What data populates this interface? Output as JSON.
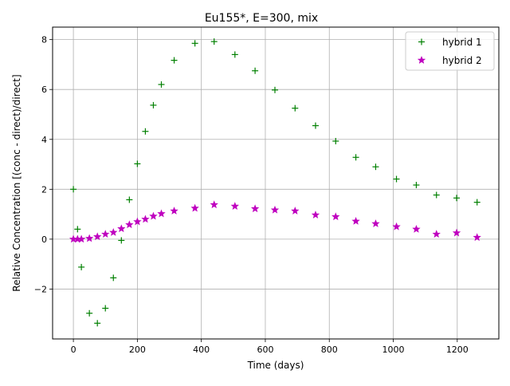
{
  "chart_data": {
    "type": "scatter",
    "title": "Eu155*, E=300, mix",
    "xlabel": "Time (days)",
    "ylabel": "Relative Concentration [(conc - direct)/direct]",
    "xlim": [
      -65,
      1330
    ],
    "ylim": [
      -4.0,
      8.5
    ],
    "xticks": [
      0,
      200,
      400,
      600,
      800,
      1000,
      1200
    ],
    "yticks": [
      -2,
      0,
      2,
      4,
      6,
      8
    ],
    "xtick_labels": [
      "0",
      "200",
      "400",
      "600",
      "800",
      "1000",
      "1200"
    ],
    "ytick_labels": [
      "−2",
      "0",
      "2",
      "4",
      "6",
      "8"
    ],
    "grid": true,
    "legend_position": "top-right",
    "series": [
      {
        "name": "hybrid 1",
        "marker": "plus",
        "color": "#008000",
        "x": [
          0,
          13,
          25,
          50,
          75,
          100,
          125,
          150,
          175,
          200,
          225,
          250,
          275,
          315,
          380,
          440,
          505,
          568,
          630,
          693,
          757,
          820,
          883,
          945,
          1010,
          1072,
          1135,
          1198,
          1262
        ],
        "y": [
          2.0,
          0.4,
          -1.12,
          -2.97,
          -3.37,
          -2.77,
          -1.55,
          -0.05,
          1.58,
          3.02,
          4.32,
          5.37,
          6.2,
          7.17,
          7.85,
          7.92,
          7.4,
          6.75,
          5.98,
          5.25,
          4.55,
          3.93,
          3.28,
          2.9,
          2.41,
          2.17,
          1.77,
          1.65,
          1.48
        ]
      },
      {
        "name": "hybrid 2",
        "marker": "star",
        "color": "#bf00bf",
        "x": [
          0,
          13,
          25,
          50,
          75,
          100,
          125,
          150,
          175,
          200,
          225,
          250,
          275,
          315,
          380,
          440,
          505,
          568,
          630,
          693,
          757,
          820,
          883,
          945,
          1010,
          1072,
          1135,
          1198,
          1262
        ],
        "y": [
          0.0,
          0.0,
          0.0,
          0.03,
          0.1,
          0.2,
          0.27,
          0.42,
          0.58,
          0.7,
          0.8,
          0.92,
          1.02,
          1.13,
          1.24,
          1.38,
          1.32,
          1.22,
          1.17,
          1.13,
          0.97,
          0.9,
          0.72,
          0.62,
          0.5,
          0.4,
          0.2,
          0.25,
          0.07
        ]
      }
    ]
  }
}
